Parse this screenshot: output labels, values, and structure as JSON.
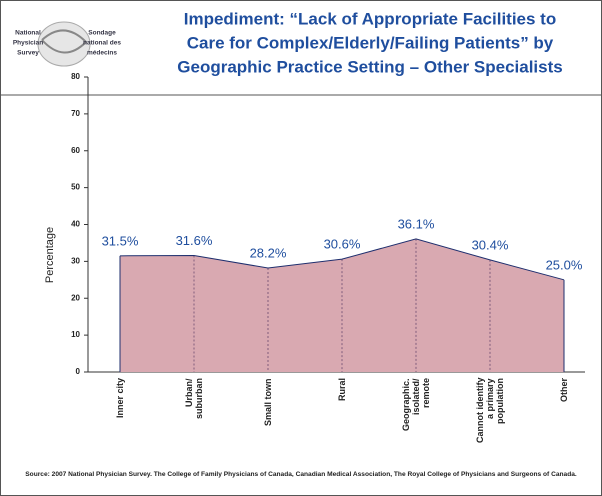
{
  "logo": {
    "left": [
      "National",
      "Physician",
      "Survey"
    ],
    "right": [
      "Sondage",
      "national des",
      "médecins"
    ]
  },
  "chart_data": {
    "type": "area",
    "title": [
      "Impediment: “Lack of Appropriate Facilities to",
      "Care for Complex/Elderly/Failing Patients” by",
      "Geographic Practice Setting – Other Specialists"
    ],
    "y_label": "Percentage",
    "categories": [
      "Inner city",
      "Urban/\nsuburban",
      "Small town",
      "Rural",
      "Geographic.\nisolated/\nremote",
      "Cannot identify\na primary\npopulation",
      "Other"
    ],
    "values": [
      31.5,
      31.6,
      28.2,
      30.6,
      36.1,
      30.4,
      25.0
    ],
    "value_labels": [
      "31.5%",
      "31.6%",
      "28.2%",
      "30.6%",
      "36.1%",
      "30.4%",
      "25.0%"
    ],
    "color": "#d9a9b1",
    "line_color": "#1f2f6e",
    "ylim": [
      0,
      80
    ],
    "yticks": [
      0,
      10,
      20,
      30,
      40,
      50,
      60,
      70,
      80
    ],
    "source": "Source: 2007 National Physician Survey. The College of Family Physicians of Canada, Canadian Medical Association, The Royal College of Physicians and Surgeons of Canada."
  }
}
